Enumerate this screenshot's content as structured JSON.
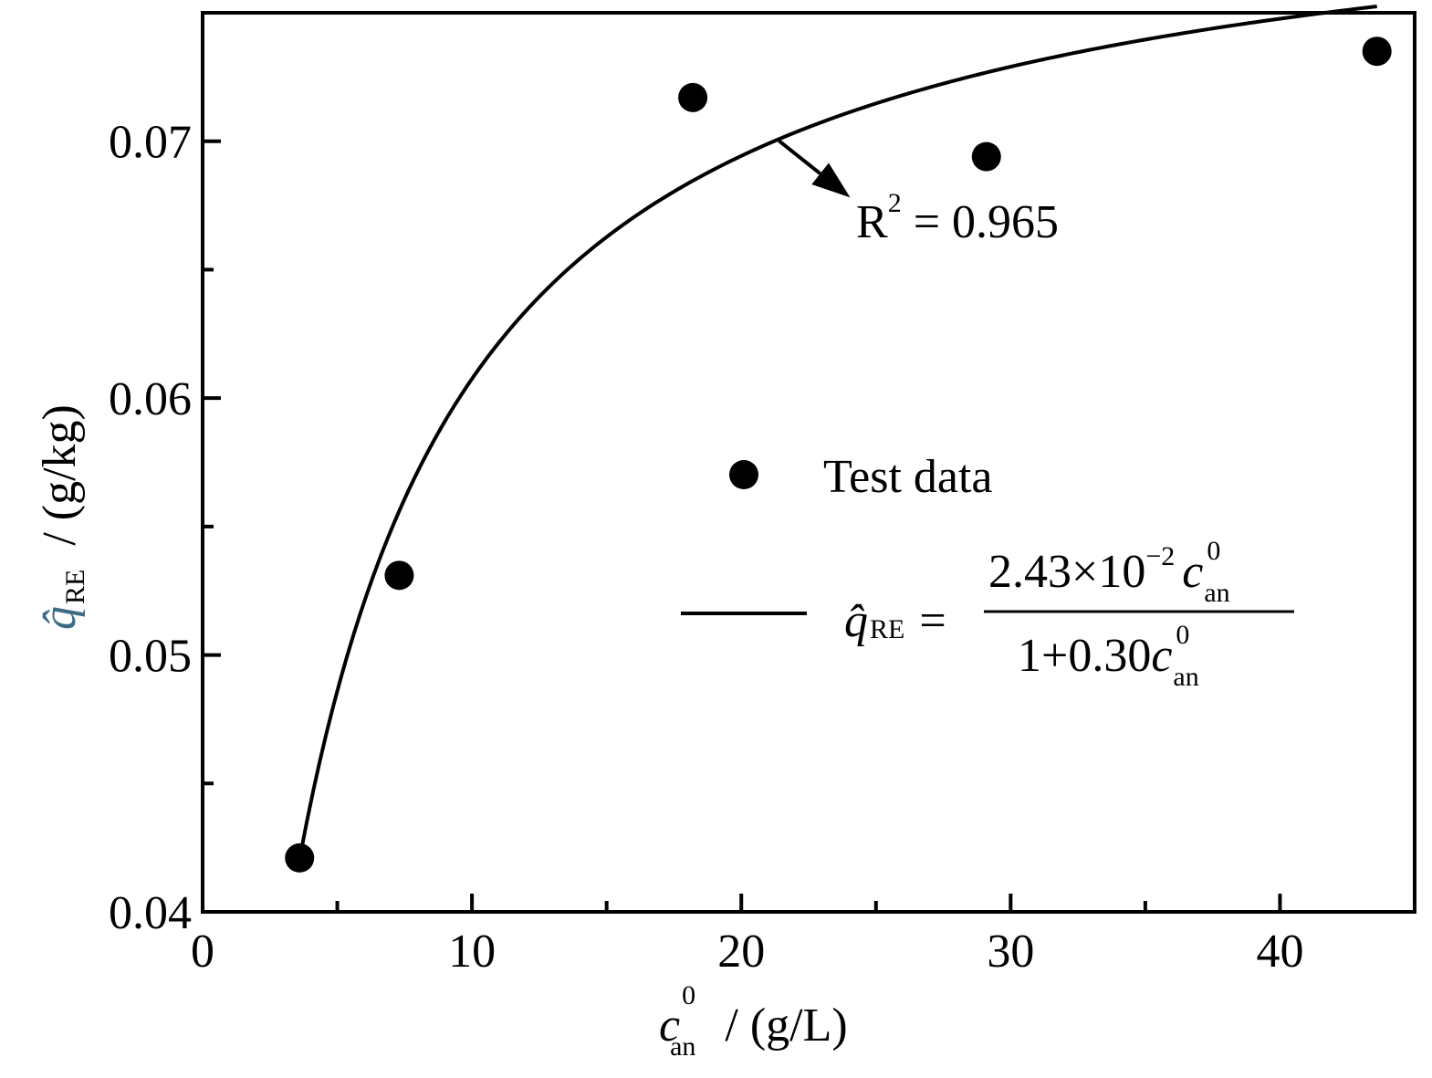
{
  "chart_data": {
    "type": "scatter",
    "xlim": [
      0,
      45
    ],
    "ylim": [
      0.04,
      0.075
    ],
    "x_ticks": [
      {
        "value": 0,
        "label": "0"
      },
      {
        "value": 10,
        "label": "10"
      },
      {
        "value": 20,
        "label": "20"
      },
      {
        "value": 30,
        "label": "30"
      },
      {
        "value": 40,
        "label": "40"
      }
    ],
    "x_minor_ticks": [
      5,
      15,
      25,
      35
    ],
    "y_ticks": [
      {
        "value": 0.04,
        "label": "0.04"
      },
      {
        "value": 0.05,
        "label": "0.05"
      },
      {
        "value": 0.06,
        "label": "0.06"
      },
      {
        "value": 0.07,
        "label": "0.07"
      }
    ],
    "y_minor_ticks": [
      0.045,
      0.055,
      0.065
    ],
    "xlabel": {
      "symbol": "c",
      "superscript": "0",
      "subscript": "an",
      "unit": "/ (g/L)"
    },
    "ylabel": {
      "symbol": "q̂",
      "subscript": "RE",
      "unit": "/ (g/kg)"
    },
    "series": [
      {
        "name": "Test data",
        "kind": "points",
        "x": [
          3.6,
          7.3,
          18.2,
          29.1,
          43.6
        ],
        "y": [
          0.0421,
          0.0531,
          0.0717,
          0.0694,
          0.0735
        ]
      },
      {
        "kind": "fit",
        "model": "a*x/(1+b*x)",
        "a": 0.0243,
        "b": 0.3,
        "x_range": [
          3.6,
          43.6
        ]
      }
    ],
    "legend": {
      "position": "center-right",
      "points_label": "Test data",
      "equation": {
        "lhs_symbol": "q̂",
        "lhs_subscript": "RE",
        "equals": "=",
        "num_prefix": "2.43×10",
        "num_exponent": "−2",
        "num_symbol": "c",
        "num_superscript": "0",
        "num_subscript": "an",
        "den_prefix": "1+0.30",
        "den_symbol": "c",
        "den_superscript": "0",
        "den_subscript": "an"
      }
    },
    "annotation": {
      "prefix": "R",
      "superscript": "2",
      "suffix": " = 0.965",
      "x": 21.4
    },
    "grid": false
  },
  "colors": {
    "ink": "#000000",
    "ylabel_symbol": "#3d6b86"
  }
}
